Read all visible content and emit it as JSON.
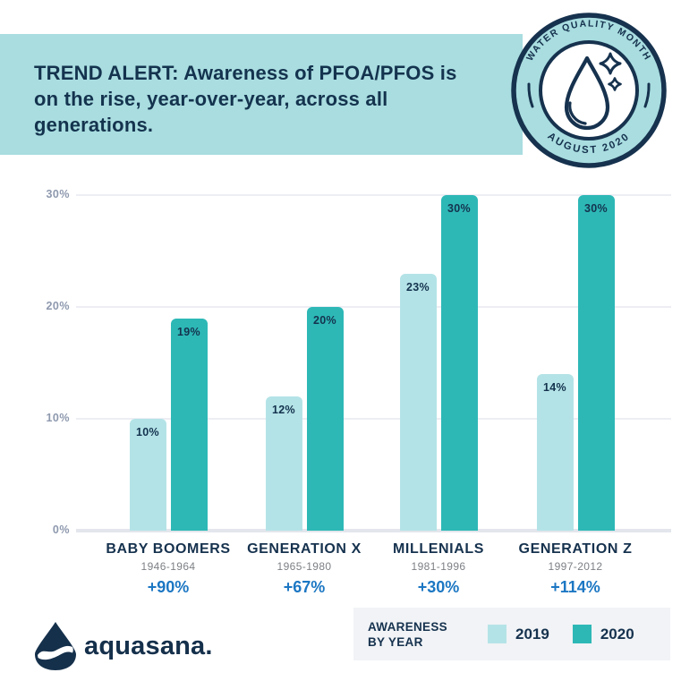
{
  "header": {
    "title_lines": [
      "TREND ALERT: Awareness of PFOA/PFOS is",
      "on the rise, year-over-year, across all",
      "generations."
    ]
  },
  "badge": {
    "top_text": "WATER QUALITY MONTH",
    "bottom_text": "AUGUST 2020",
    "icon": "water-drop-sparkle-icon"
  },
  "chart_data": {
    "type": "bar",
    "title": "",
    "categories": [
      "BABY BOOMERS",
      "GENERATION X",
      "MILLENIALS",
      "GENERATION Z"
    ],
    "category_years": [
      "1946-1964",
      "1965-1980",
      "1981-1996",
      "1997-2012"
    ],
    "category_change": [
      "+90%",
      "+67%",
      "+30%",
      "+114%"
    ],
    "series": [
      {
        "name": "2019",
        "color": "#b4e3e7",
        "values": [
          10,
          12,
          23,
          14
        ]
      },
      {
        "name": "2020",
        "color": "#2db8b6",
        "values": [
          19,
          20,
          30,
          30
        ]
      }
    ],
    "yticks": [
      "0%",
      "10%",
      "20%",
      "30%"
    ],
    "ylim": [
      0,
      30
    ],
    "grid": true,
    "legend_position": "bottom-right",
    "value_label_suffix": "%"
  },
  "legend": {
    "title_lines": [
      "AWARENESS",
      "BY YEAR"
    ],
    "items": [
      {
        "label": "2019",
        "color": "#b4e3e7"
      },
      {
        "label": "2020",
        "color": "#2db8b6"
      }
    ]
  },
  "footer": {
    "brand": "aquasana",
    "brand_suffix": "."
  },
  "colors": {
    "banner": "#a9dde0",
    "navy": "#16324e",
    "bar_2019": "#b4e3e7",
    "bar_2020": "#2db8b6",
    "change_blue": "#1c77c3",
    "years_gray": "#7d8085",
    "ytick_gray": "#8e99ae",
    "gridline": "#edeef4",
    "legend_bg": "#f1f3f6"
  }
}
